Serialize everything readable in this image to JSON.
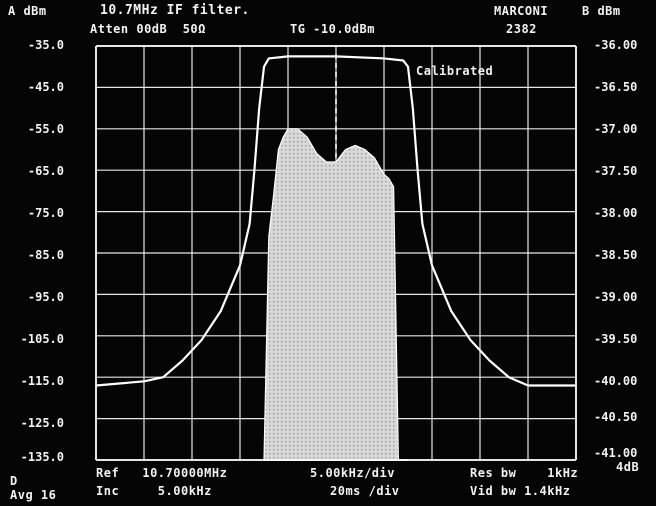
{
  "header": {
    "a_unit": "A dBm",
    "title": "10.7MHz IF filter.",
    "brand": "MARCONI",
    "b_unit": "B dBm",
    "atten": "Atten 00dB  50Ω",
    "tg": "TG -10.0dBm",
    "model": "2382",
    "calibrated": "Calibrated"
  },
  "footer": {
    "ref": "Ref   10.70000MHz",
    "span": "5.00kHz/div",
    "res_bw": "Res bw    1kHz",
    "inc": "Inc     5.00kHz",
    "sweep": "20ms /div",
    "vid_bw": "Vid bw 1.4kHz",
    "d_label": "D",
    "avg": "Avg 16",
    "db_per_div": "4dB"
  },
  "colors": {
    "trace": "#ffffff",
    "grid": "#e6e6e6",
    "fill": "#d8d8d8",
    "background": "#050505"
  },
  "chart_data": {
    "type": "line",
    "title": "10.7MHz IF filter.",
    "center_freq": "10.70000MHz",
    "x_unit": "kHz offset from ref",
    "xlim": [
      -25,
      25
    ],
    "grid": true,
    "left_axis": {
      "label": "A dBm",
      "ylim": [
        -135,
        -35
      ],
      "ticks": [
        "-35.0",
        "-45.0",
        "-55.0",
        "-65.0",
        "-75.0",
        "-85.0",
        "-95.0",
        "-105.0",
        "-115.0",
        "-125.0",
        "-135.0"
      ]
    },
    "right_axis": {
      "label": "B dBm",
      "ylim": [
        -41.0,
        -36.0
      ],
      "ticks": [
        "-36.00",
        "-36.50",
        "-37.00",
        "-37.50",
        "-38.00",
        "-38.50",
        "-39.00",
        "-39.50",
        "-40.00",
        "-40.50",
        "-41.00"
      ]
    },
    "series": [
      {
        "name": "A",
        "axis": "left",
        "style": "line",
        "x": [
          -25,
          -20,
          -18,
          -16,
          -14,
          -12,
          -10,
          -9,
          -8.5,
          -8,
          -7.5,
          -7,
          -5,
          0,
          5,
          7,
          7.5,
          8,
          8.5,
          9,
          10,
          12,
          14,
          16,
          18,
          20,
          25
        ],
        "y": [
          -117,
          -116,
          -115,
          -111,
          -106,
          -99,
          -88,
          -78,
          -65,
          -50,
          -40,
          -38,
          -37.5,
          -37.5,
          -38,
          -38.5,
          -40,
          -50,
          -65,
          -78,
          -88,
          -99,
          -106,
          -111,
          -115,
          -117,
          -117
        ]
      },
      {
        "name": "B",
        "axis": "right",
        "style": "filled",
        "x": [
          -7.5,
          -7,
          -6.5,
          -6,
          -5.5,
          -5,
          -4,
          -3,
          -2,
          -1,
          0,
          1,
          2,
          3,
          4,
          5,
          5.5,
          6,
          6.5,
          7.5
        ],
        "y": [
          -41.0,
          -38.3,
          -37.8,
          -37.25,
          -37.1,
          -37.0,
          -37.0,
          -37.1,
          -37.3,
          -37.4,
          -37.4,
          -37.25,
          -37.2,
          -37.25,
          -37.35,
          -37.55,
          -37.6,
          -37.7,
          -41.0,
          -41.0
        ]
      }
    ],
    "marker": {
      "x": 0,
      "style": "dashed"
    }
  }
}
